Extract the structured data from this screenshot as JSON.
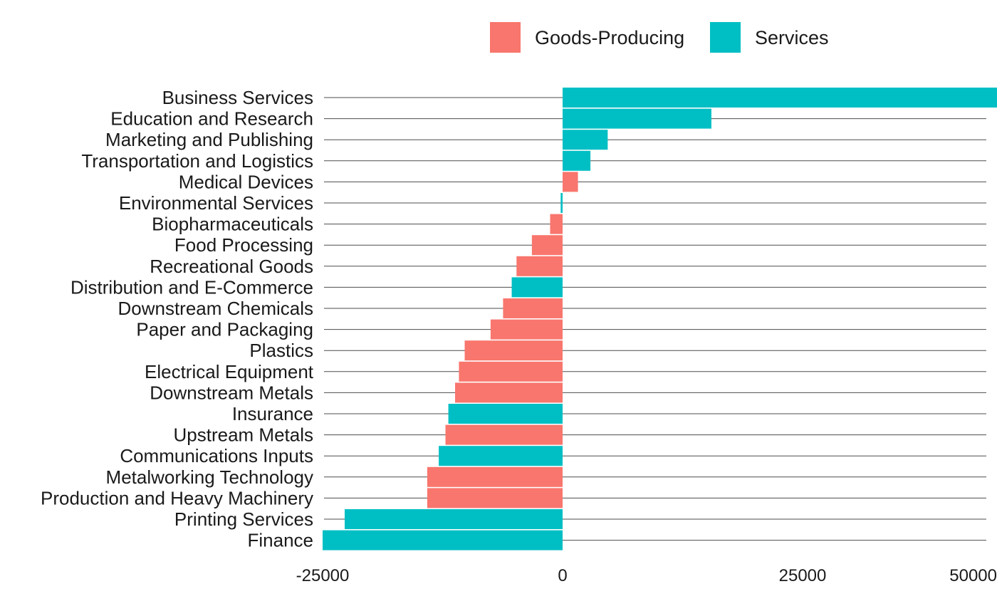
{
  "chart_data": {
    "type": "bar",
    "orientation": "horizontal",
    "title": "",
    "xlabel": "",
    "ylabel": "",
    "xlim": [
      -25000,
      50000
    ],
    "x_ticks": [
      -25000,
      0,
      25000,
      50000
    ],
    "x_tick_labels": [
      "-25000",
      "0",
      "25000",
      "50000"
    ],
    "legend": {
      "placement": "top",
      "entries": [
        {
          "name": "Goods-Producing",
          "color": "#F8766D"
        },
        {
          "name": "Services",
          "color": "#00BFC4"
        }
      ]
    },
    "grid": "horizontal-per-category",
    "categories": [
      "Business Services",
      "Education and Research",
      "Marketing and Publishing",
      "Transportation and Logistics",
      "Medical Devices",
      "Environmental Services",
      "Biopharmaceuticals",
      "Food Processing",
      "Recreational Goods",
      "Distribution and E-Commerce",
      "Downstream Chemicals",
      "Paper and Packaging",
      "Plastics",
      "Electrical Equipment",
      "Downstream Metals",
      "Insurance",
      "Upstream Metals",
      "Communications Inputs",
      "Metalworking Technology",
      "Production and Heavy Machinery",
      "Printing Services",
      "Finance"
    ],
    "values": [
      47000,
      15500,
      4700,
      2900,
      1600,
      -200,
      -1300,
      -3200,
      -4800,
      -5300,
      -6200,
      -7500,
      -10200,
      -10800,
      -11200,
      -11900,
      -12200,
      -12900,
      -14100,
      -14100,
      -22700,
      -25000
    ],
    "groups": [
      "Services",
      "Services",
      "Services",
      "Services",
      "Goods-Producing",
      "Services",
      "Goods-Producing",
      "Goods-Producing",
      "Goods-Producing",
      "Services",
      "Goods-Producing",
      "Goods-Producing",
      "Goods-Producing",
      "Goods-Producing",
      "Goods-Producing",
      "Services",
      "Goods-Producing",
      "Services",
      "Goods-Producing",
      "Goods-Producing",
      "Services",
      "Services"
    ]
  }
}
